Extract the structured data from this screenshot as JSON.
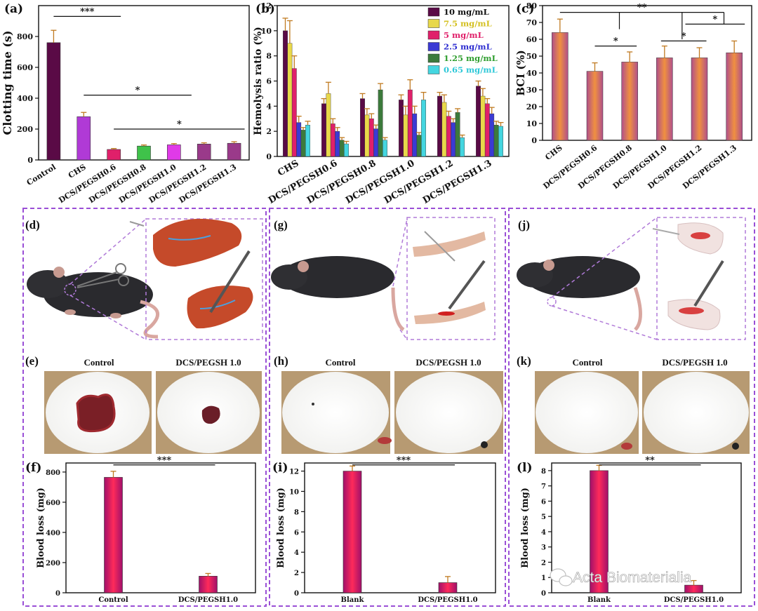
{
  "figure": {
    "watermark": "Acta Biomaterialia"
  },
  "chart_data": [
    {
      "panel": "(a)",
      "type": "bar",
      "ylabel": "Clotting time (s)",
      "categories": [
        "Control",
        "CHS",
        "DCS/PEGSH0.6",
        "DCS/PEGSH0.8",
        "DCS/PEGSH1.0",
        "DCS/PEGSH1.2",
        "DCS/PEGSH1.3"
      ],
      "values": [
        760,
        280,
        68,
        90,
        98,
        103,
        108
      ],
      "errors": [
        80,
        28,
        6,
        7,
        8,
        8,
        10
      ],
      "colors": [
        "#5a0a46",
        "#b03ad6",
        "#e0206a",
        "#3fc24a",
        "#e03ae8",
        "#9a3a8a",
        "#9a3a8a"
      ],
      "ylim": [
        0,
        1000
      ],
      "yticks": [
        0,
        200,
        400,
        600,
        800
      ],
      "sig": [
        "***",
        "*",
        "*"
      ]
    },
    {
      "panel": "(b)",
      "type": "bar",
      "ylabel": "Hemolysis ratio (%)",
      "categories": [
        "CHS",
        "DCS/PEGSH0.6",
        "DCS/PEGSH0.8",
        "DCS/PEGSH1.0",
        "DCS/PEGSH1.2",
        "DCS/PEGSH1.3"
      ],
      "ylim": [
        0,
        12
      ],
      "yticks": [
        0,
        2,
        4,
        6,
        8,
        10,
        12
      ],
      "series": [
        {
          "name": "10 mg/mL",
          "color": "#5a0a46",
          "labelColor": "#111111",
          "values": [
            10,
            4.2,
            4.6,
            4.5,
            4.8,
            5.6
          ],
          "errors": [
            1.0,
            0.4,
            0.4,
            0.4,
            0.3,
            0.4
          ]
        },
        {
          "name": "7.5 mg/mL",
          "color": "#e8d84a",
          "labelColor": "#d4c020",
          "values": [
            9,
            5.0,
            3.3,
            3.3,
            4.3,
            4.8
          ],
          "errors": [
            1.8,
            0.9,
            0.5,
            0.7,
            0.6,
            0.6
          ]
        },
        {
          "name": "5 mg/mL",
          "color": "#e0206a",
          "labelColor": "#e0206a",
          "values": [
            7,
            2.6,
            3.0,
            5.3,
            3.2,
            4.2
          ],
          "errors": [
            1.0,
            0.4,
            0.4,
            0.8,
            0.4,
            0.4
          ]
        },
        {
          "name": "2.5 mg/mL",
          "color": "#3b3ad4",
          "labelColor": "#2c2cd0",
          "values": [
            2.7,
            2.0,
            2.2,
            3.4,
            2.7,
            3.4
          ],
          "errors": [
            0.5,
            0.3,
            0.3,
            0.6,
            0.3,
            0.5
          ]
        },
        {
          "name": "1.25 mg/mL",
          "color": "#3c7a3c",
          "labelColor": "#2f9e2f",
          "values": [
            2.1,
            1.3,
            5.3,
            1.7,
            3.5,
            2.5
          ],
          "errors": [
            0.2,
            0.2,
            0.5,
            0.2,
            0.3,
            0.3
          ]
        },
        {
          "name": "0.65 mg/mL",
          "color": "#44d6e0",
          "labelColor": "#2ec8d8",
          "values": [
            2.5,
            1.0,
            1.3,
            4.5,
            1.5,
            2.4
          ],
          "errors": [
            0.3,
            0.2,
            0.2,
            0.6,
            0.2,
            0.3
          ]
        }
      ]
    },
    {
      "panel": "(c)",
      "type": "bar",
      "ylabel": "BCI (%)",
      "categories": [
        "CHS",
        "DCS/PEGSH0.6",
        "DCS/PEGSH0.8",
        "DCS/PEGSH1.0",
        "DCS/PEGSH1.2",
        "DCS/PEGSH1.3"
      ],
      "values": [
        64,
        41,
        46.5,
        49,
        49,
        52
      ],
      "errors": [
        8,
        5,
        6,
        7,
        6,
        7
      ],
      "color": "#d98040",
      "ylim": [
        0,
        80
      ],
      "yticks": [
        0,
        10,
        20,
        30,
        40,
        50,
        60,
        70,
        80
      ],
      "sig": [
        "**",
        "*",
        "*",
        "*"
      ]
    },
    {
      "panel": "(f)",
      "type": "bar",
      "ylabel": "Blood loss (mg)",
      "categories": [
        "Control",
        "DCS/PEGSH1.0"
      ],
      "values": [
        765,
        110
      ],
      "errors": [
        40,
        18
      ],
      "ylim": [
        0,
        860
      ],
      "yticks": [
        0,
        200,
        400,
        600,
        800
      ],
      "sig": "***"
    },
    {
      "panel": "(i)",
      "type": "bar",
      "ylabel": "Blood loss (mg)",
      "categories": [
        "Blank",
        "DCS/PEGSH1.0"
      ],
      "values": [
        12,
        1.0
      ],
      "errors": [
        0.5,
        0.6
      ],
      "ylim": [
        0,
        12.8
      ],
      "yticks": [
        0,
        2,
        4,
        6,
        8,
        10,
        12
      ],
      "sig": "***"
    },
    {
      "panel": "(l)",
      "type": "bar",
      "ylabel": "Blood loss (mg)",
      "categories": [
        "Blank",
        "DCS/PEGSH1.0"
      ],
      "values": [
        8,
        0.5
      ],
      "errors": [
        0.35,
        0.3
      ],
      "ylim": [
        0,
        8.5
      ],
      "yticks": [
        0,
        1,
        2,
        3,
        4,
        5,
        6,
        7,
        8
      ],
      "sig": "**"
    }
  ],
  "photo_panels": [
    {
      "panel": "(e)",
      "left": "Control",
      "right": "DCS/PEGSH 1.0"
    },
    {
      "panel": "(h)",
      "left": "Control",
      "right": "DCS/PEGSH 1.0"
    },
    {
      "panel": "(k)",
      "left": "Control",
      "right": "DCS/PEGSH 1.0"
    }
  ],
  "illustration_panels": {
    "left": "(d)",
    "middle": "(g)",
    "right": "(j)"
  }
}
